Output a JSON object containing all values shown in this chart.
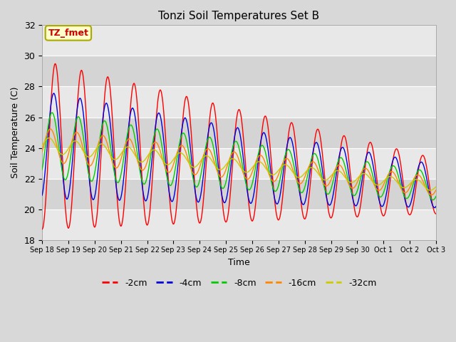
{
  "title": "Tonzi Soil Temperatures Set B",
  "xlabel": "Time",
  "ylabel": "Soil Temperature (C)",
  "ylim": [
    18,
    32
  ],
  "annotation_text": "TZ_fmet",
  "annotation_bg": "#ffffcc",
  "annotation_border": "#aaaa00",
  "annotation_text_color": "#cc0000",
  "series_colors": {
    "-2cm": "#ff0000",
    "-4cm": "#0000dd",
    "-8cm": "#00cc00",
    "-16cm": "#ff8800",
    "-32cm": "#cccc00"
  },
  "legend_labels": [
    "-2cm",
    "-4cm",
    "-8cm",
    "-16cm",
    "-32cm"
  ],
  "x_tick_labels": [
    "Sep 18",
    "Sep 19",
    "Sep 20",
    "Sep 21",
    "Sep 22",
    "Sep 23",
    "Sep 24",
    "Sep 25",
    "Sep 26",
    "Sep 27",
    "Sep 28",
    "Sep 29",
    "Sep 30",
    "Oct 1",
    "Oct 2",
    "Oct 3"
  ],
  "background_color": "#d8d8d8",
  "plot_bg_color": "#ffffff",
  "grid_color": "#d8d8d8",
  "band_colors": [
    "#e8e8e8",
    "#d0d0d0"
  ]
}
